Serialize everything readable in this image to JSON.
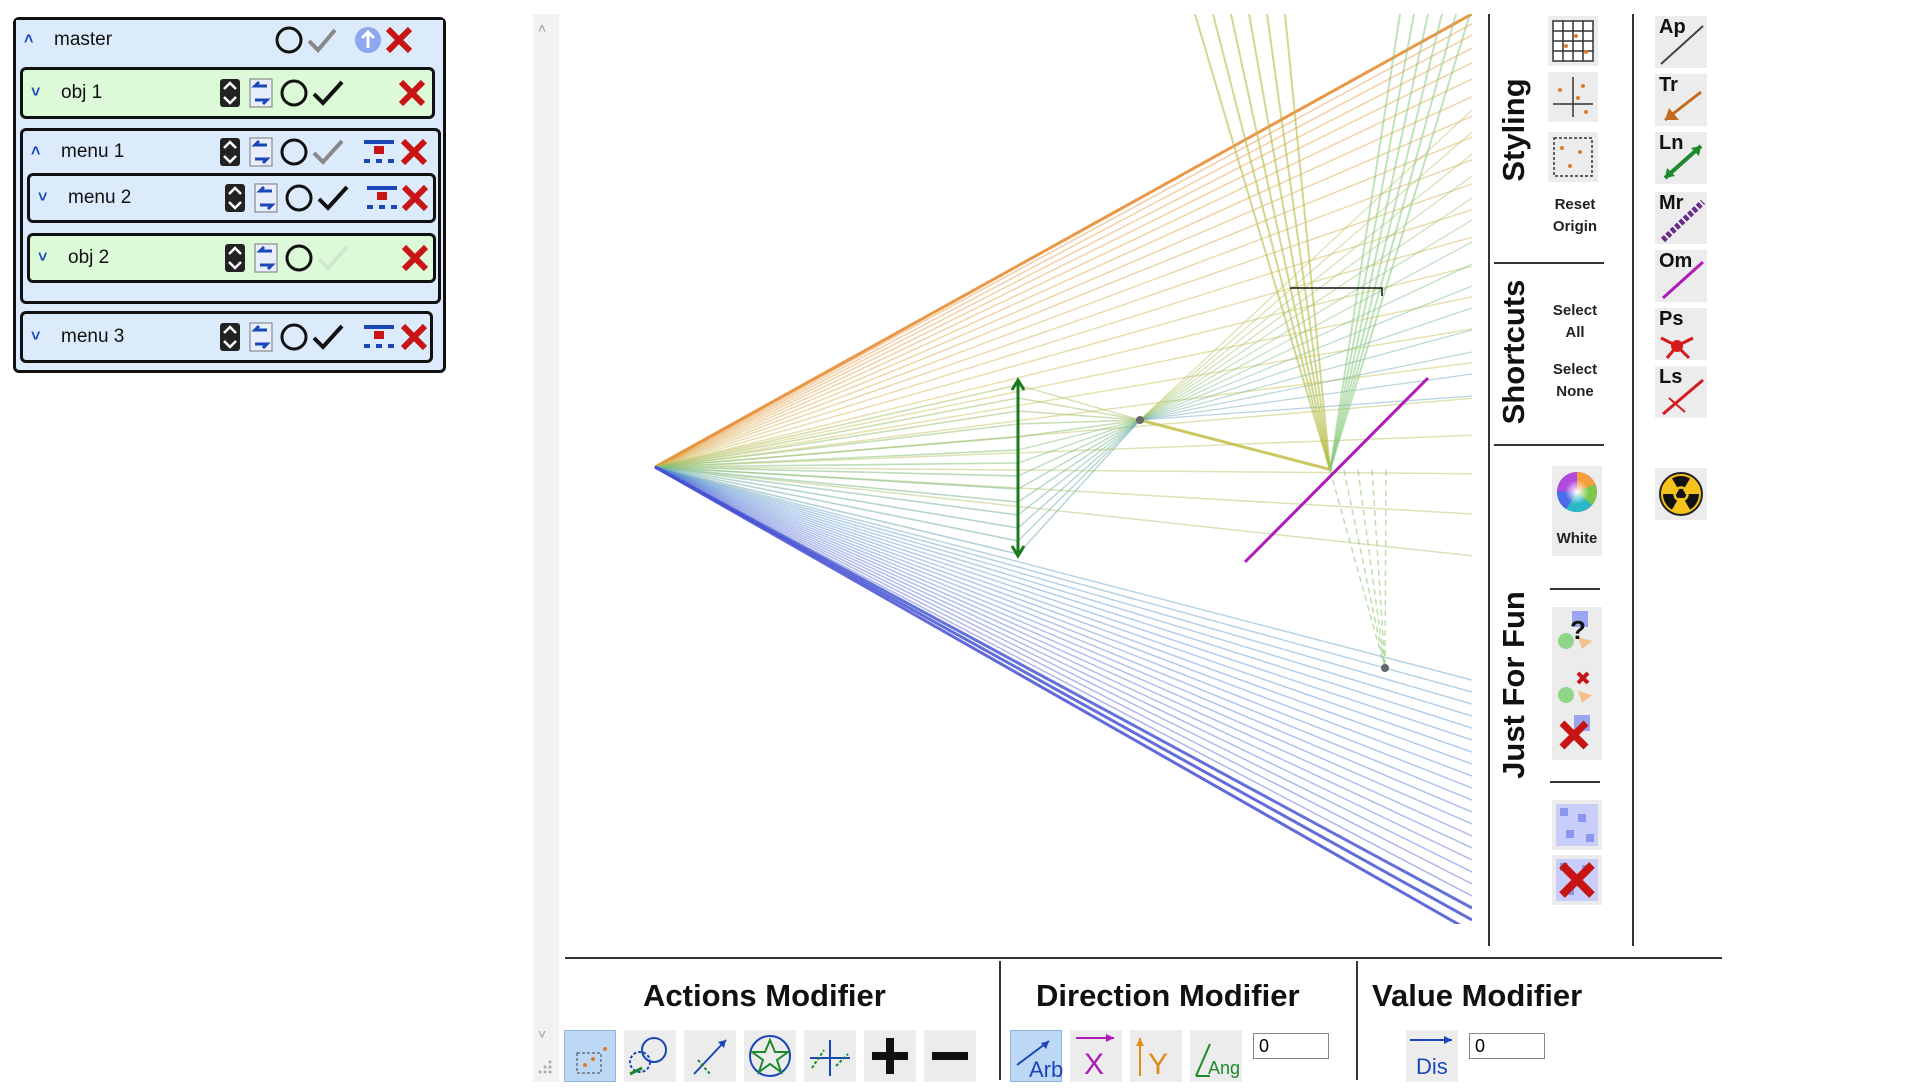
{
  "layers": {
    "master": {
      "label": "master"
    },
    "obj1": {
      "label": "obj 1"
    },
    "menu1": {
      "label": "menu 1"
    },
    "menu2": {
      "label": "menu 2"
    },
    "obj2": {
      "label": "obj 2"
    },
    "menu3": {
      "label": "menu 3"
    }
  },
  "sections": {
    "styling": "Styling",
    "shortcuts": "Shortcuts",
    "fun": "Just For Fun"
  },
  "styling": {
    "reset_line1": "Reset",
    "reset_line2": "Origin"
  },
  "shortcuts": {
    "select_all_1": "Select",
    "select_all_2": "All",
    "select_none_1": "Select",
    "select_none_2": "None"
  },
  "fun": {
    "color_label": "White"
  },
  "pens": {
    "ap": "Ap",
    "tr": "Tr",
    "ln": "Ln",
    "mr": "Mr",
    "om": "Om",
    "ps": "Ps",
    "ls": "Ls"
  },
  "modifiers": {
    "actions": "Actions Modifier",
    "direction": "Direction Modifier",
    "value": "Value Modifier",
    "arb": "Arb",
    "x": "X",
    "y": "Y",
    "ang": "Ang",
    "dis": "Dis",
    "direction_value": "0",
    "value_value": "0"
  },
  "colors": {
    "accent": "#1a47b8",
    "close": "#c81414",
    "panel_blue": "#dcebfb",
    "panel_green": "#dcf9d8"
  }
}
